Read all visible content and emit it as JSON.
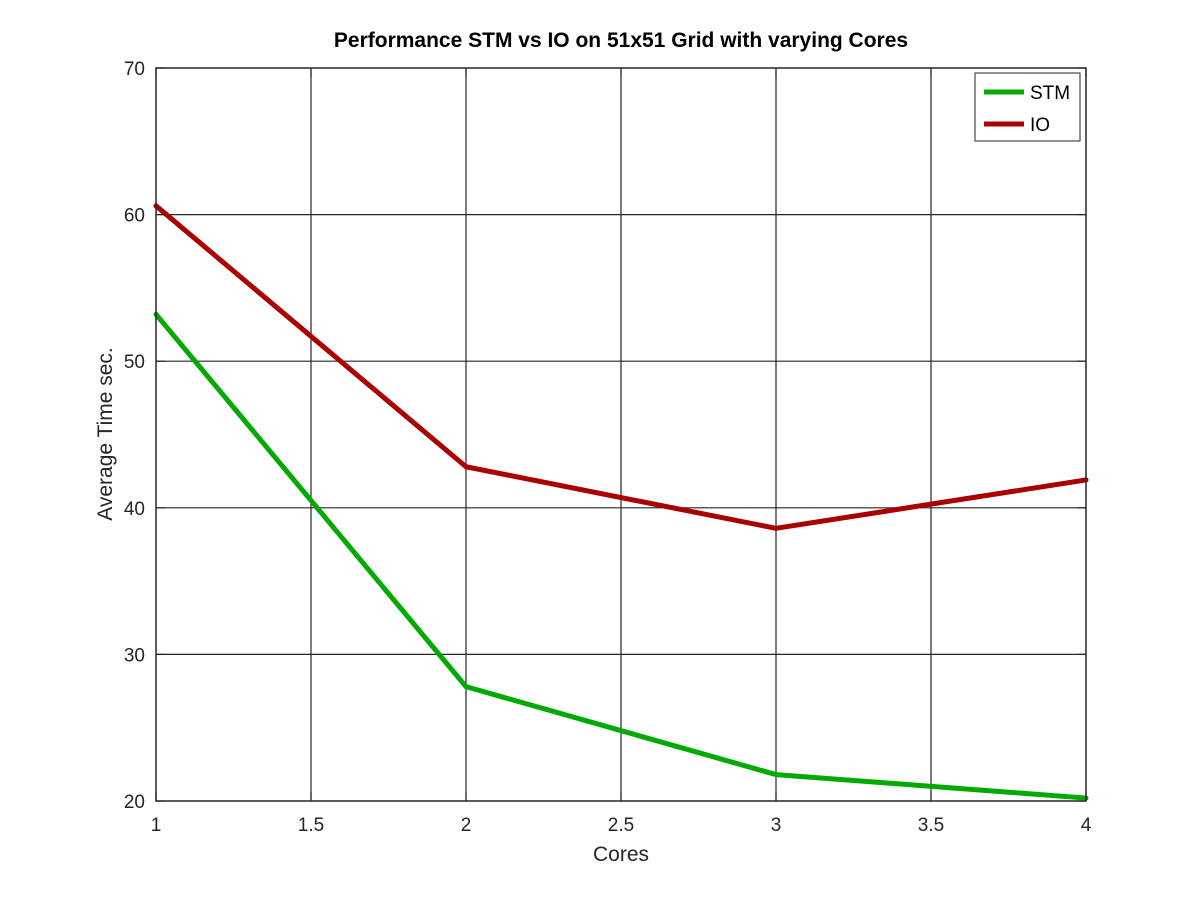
{
  "chart_data": {
    "type": "line",
    "title": "Performance STM vs IO on 51x51 Grid with varying Cores",
    "xlabel": "Cores",
    "ylabel": "Average Time sec.",
    "x": [
      1,
      2,
      3,
      4
    ],
    "xlim": [
      1,
      4
    ],
    "ylim": [
      20,
      70
    ],
    "xticks": [
      1,
      1.5,
      2,
      2.5,
      3,
      3.5,
      4
    ],
    "yticks": [
      20,
      30,
      40,
      50,
      60,
      70
    ],
    "xtick_labels": [
      "1",
      "1.5",
      "2",
      "2.5",
      "3",
      "3.5",
      "4"
    ],
    "ytick_labels": [
      "20",
      "30",
      "40",
      "50",
      "60",
      "70"
    ],
    "grid": true,
    "legend_position": "top-right",
    "series": [
      {
        "name": "STM",
        "values": [
          53.2,
          27.8,
          21.8,
          20.2
        ],
        "color": "#00aa00"
      },
      {
        "name": "IO",
        "values": [
          60.6,
          42.8,
          38.6,
          41.9
        ],
        "color": "#aa0000"
      }
    ]
  }
}
